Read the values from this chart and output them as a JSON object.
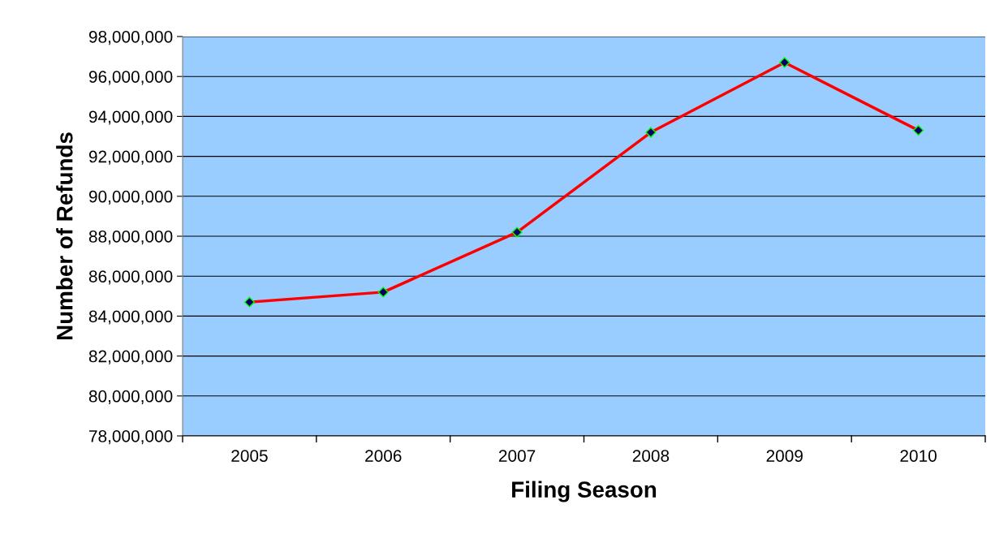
{
  "chart_data": {
    "type": "line",
    "xlabel": "Filing Season",
    "ylabel": "Number of Refunds",
    "categories": [
      "2005",
      "2006",
      "2007",
      "2008",
      "2009",
      "2010"
    ],
    "series": [
      {
        "color": "#ff0000",
        "values": [
          84700000,
          85200000,
          88200000,
          93200000,
          96700000,
          93300000
        ]
      }
    ],
    "ylim": [
      78000000,
      98000000
    ],
    "yticks": [
      {
        "value": 78000000,
        "label": "78,000,000"
      },
      {
        "value": 80000000,
        "label": "80,000,000"
      },
      {
        "value": 82000000,
        "label": "82,000,000"
      },
      {
        "value": 84000000,
        "label": "84,000,000"
      },
      {
        "value": 86000000,
        "label": "86,000,000"
      },
      {
        "value": 88000000,
        "label": "88,000,000"
      },
      {
        "value": 90000000,
        "label": "90,000,000"
      },
      {
        "value": 92000000,
        "label": "92,000,000"
      },
      {
        "value": 94000000,
        "label": "94,000,000"
      },
      {
        "value": 96000000,
        "label": "96,000,000"
      },
      {
        "value": 98000000,
        "label": "98,000,000"
      }
    ],
    "grid": "y",
    "marker": "diamond",
    "line_style": "solid",
    "legend": false
  }
}
